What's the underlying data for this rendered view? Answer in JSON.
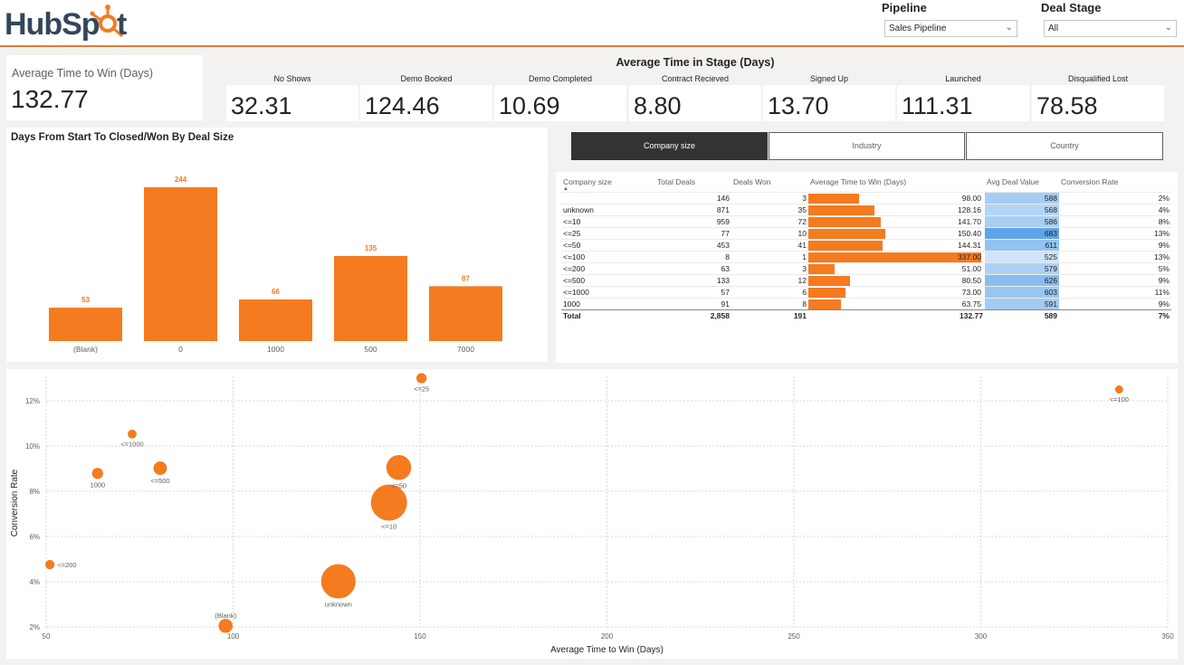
{
  "brand": {
    "logo_text": "HubSpot",
    "accent": "#f47b20",
    "header_line": "#e37a3b"
  },
  "filters": {
    "pipeline": {
      "label": "Pipeline",
      "value": "Sales Pipeline"
    },
    "deal_stage": {
      "label": "Deal Stage",
      "value": "All"
    }
  },
  "kpi": {
    "title": "Average Time to Win (Days)",
    "value": "132.77"
  },
  "stages": {
    "title": "Average Time in Stage (Days)",
    "items": [
      {
        "label": "No Shows",
        "value": "32.31"
      },
      {
        "label": "Demo Booked",
        "value": "124.46"
      },
      {
        "label": "Demo Completed",
        "value": "10.69"
      },
      {
        "label": "Contract Recieved",
        "value": "8.80"
      },
      {
        "label": "Signed Up",
        "value": "13.70"
      },
      {
        "label": "Launched",
        "value": "111.31"
      },
      {
        "label": "Disqualified Lost",
        "value": "78.58"
      }
    ]
  },
  "tabs": [
    {
      "label": "Company size",
      "active": true
    },
    {
      "label": "Industry",
      "active": false
    },
    {
      "label": "Country",
      "active": false
    }
  ],
  "table": {
    "headers": [
      "Company size",
      "Total Deals",
      "Deals Won",
      "Average Time to Win (Days)",
      "Avg Deal Value",
      "Conversion Rate"
    ],
    "rows": [
      {
        "size": "",
        "total": "146",
        "won": "3",
        "avg": "98.00",
        "avg_num": 98.0,
        "deal": "588",
        "deal_color": "#a5cdf3",
        "conv": "2%"
      },
      {
        "size": "unknown",
        "total": "871",
        "won": "35",
        "avg": "128.16",
        "avg_num": 128.16,
        "deal": "568",
        "deal_color": "#b3d5f5",
        "conv": "4%"
      },
      {
        "size": "<=10",
        "total": "959",
        "won": "72",
        "avg": "141.70",
        "avg_num": 141.7,
        "deal": "586",
        "deal_color": "#a7cef3",
        "conv": "8%"
      },
      {
        "size": "<=25",
        "total": "77",
        "won": "10",
        "avg": "150.40",
        "avg_num": 150.4,
        "deal": "683",
        "deal_color": "#5fa4e8",
        "conv": "13%"
      },
      {
        "size": "<=50",
        "total": "453",
        "won": "41",
        "avg": "144.31",
        "avg_num": 144.31,
        "deal": "611",
        "deal_color": "#93c3f0",
        "conv": "9%"
      },
      {
        "size": "<=100",
        "total": "8",
        "won": "1",
        "avg": "337.00",
        "avg_num": 337.0,
        "deal": "525",
        "deal_color": "#cfe4f9",
        "conv": "13%"
      },
      {
        "size": "<=200",
        "total": "63",
        "won": "3",
        "avg": "51.00",
        "avg_num": 51.0,
        "deal": "579",
        "deal_color": "#acd1f4",
        "conv": "5%"
      },
      {
        "size": "<=500",
        "total": "133",
        "won": "12",
        "avg": "80.50",
        "avg_num": 80.5,
        "deal": "626",
        "deal_color": "#88bdef",
        "conv": "9%"
      },
      {
        "size": "<=1000",
        "total": "57",
        "won": "6",
        "avg": "73.00",
        "avg_num": 73.0,
        "deal": "603",
        "deal_color": "#99c6f1",
        "conv": "11%"
      },
      {
        "size": "1000",
        "total": "91",
        "won": "8",
        "avg": "63.75",
        "avg_num": 63.75,
        "deal": "591",
        "deal_color": "#a2cbf2",
        "conv": "9%"
      }
    ],
    "total": {
      "label": "Total",
      "total": "2,858",
      "won": "191",
      "avg": "132.77",
      "deal": "589",
      "conv": "7%"
    }
  },
  "chart_data": [
    {
      "type": "bar",
      "title": "Days From Start To Closed/Won By Deal Size",
      "categories": [
        "(Blank)",
        "0",
        "1000",
        "500",
        "7000"
      ],
      "values": [
        53,
        244,
        66,
        135,
        87
      ],
      "color": "#f47b20",
      "ylim": [
        0,
        244
      ]
    },
    {
      "type": "scatter",
      "xlabel": "Average Time to Win (Days)",
      "ylabel": "Conversion Rate",
      "xlim": [
        50,
        350
      ],
      "ylim": [
        2,
        13
      ],
      "x_ticks": [
        "50",
        "100",
        "150",
        "200",
        "250",
        "300",
        "350"
      ],
      "y_ticks": [
        "2%",
        "4%",
        "6%",
        "8%",
        "10%",
        "12%"
      ],
      "color": "#f47b20",
      "points": [
        {
          "label": "(Blank)",
          "x": 98.0,
          "y": 2.05,
          "size": 146
        },
        {
          "label": "unknown",
          "x": 128.16,
          "y": 4.02,
          "size": 871
        },
        {
          "label": "<=10",
          "x": 141.7,
          "y": 7.5,
          "size": 959
        },
        {
          "label": "<=25",
          "x": 150.4,
          "y": 13.0,
          "size": 77
        },
        {
          "label": "<=50",
          "x": 144.31,
          "y": 9.05,
          "size": 453
        },
        {
          "label": "<=100",
          "x": 337.0,
          "y": 12.5,
          "size": 8
        },
        {
          "label": "<=200",
          "x": 51.0,
          "y": 4.76,
          "size": 63
        },
        {
          "label": "<=500",
          "x": 80.5,
          "y": 9.02,
          "size": 133
        },
        {
          "label": "<=1000",
          "x": 73.0,
          "y": 10.53,
          "size": 57
        },
        {
          "label": "1000",
          "x": 63.75,
          "y": 8.79,
          "size": 91
        }
      ]
    }
  ]
}
